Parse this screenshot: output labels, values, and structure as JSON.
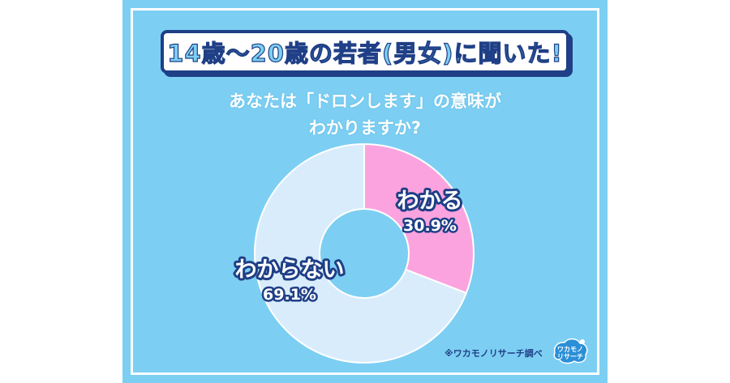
{
  "header": {
    "title": "14歳～20歳の若者(男女)に聞いた!"
  },
  "question": {
    "line1": "あなたは「ドロンします」の意味が",
    "line2": "わかりますか?"
  },
  "chart_data": {
    "type": "pie",
    "donut": true,
    "slices": [
      {
        "label": "わかる",
        "value": 30.9,
        "display": "30.9%",
        "color": "#fba3df"
      },
      {
        "label": "わからない",
        "value": 69.1,
        "display": "69.1%",
        "color": "#d8ecfc"
      }
    ]
  },
  "footer": {
    "source": "※ワカモノリサーチ調べ",
    "logo_text_1": "ワカモノ",
    "logo_text_2": "リサーチ"
  },
  "colors": {
    "background": "#7ccff3",
    "navy": "#1f3f86",
    "pink": "#fba3df",
    "light_blue": "#d8ecfc"
  }
}
